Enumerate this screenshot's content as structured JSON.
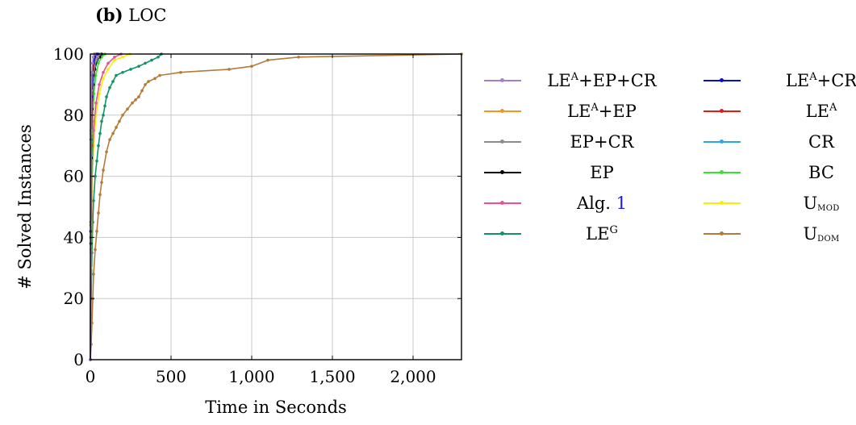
{
  "panel": {
    "tag": "(b)",
    "name": "LOC"
  },
  "chart_data": {
    "type": "line",
    "title": "(b) LOC",
    "xlabel": "Time in Seconds",
    "ylabel": "# Solved Instances",
    "xlim": [
      0,
      2300
    ],
    "ylim": [
      0,
      100
    ],
    "x_ticks": [
      0,
      500,
      1000,
      1500,
      2000
    ],
    "x_tick_labels": [
      "0",
      "500",
      "1,000",
      "1,500",
      "2,000"
    ],
    "y_ticks": [
      0,
      20,
      40,
      60,
      80,
      100
    ],
    "y_tick_labels": [
      "0",
      "20",
      "40",
      "60",
      "80",
      "100"
    ],
    "grid": true,
    "legend_position": "right",
    "series": [
      {
        "key": "le_a_ep_cr",
        "color": "#a77fc0",
        "x": [
          0,
          2,
          4,
          7,
          10,
          14,
          18,
          24,
          30
        ],
        "y": [
          0,
          45,
          75,
          88,
          94,
          97,
          99,
          100,
          100
        ]
      },
      {
        "key": "le_a_cr",
        "color": "#0a0ad6",
        "x": [
          0,
          2,
          4,
          8,
          12,
          18,
          26,
          36,
          45
        ],
        "y": [
          0,
          42,
          72,
          86,
          93,
          97,
          99,
          100,
          100
        ]
      },
      {
        "key": "le_a_ep",
        "color": "#f7941d",
        "x": [
          0,
          2,
          4,
          7,
          11,
          16,
          22,
          30
        ],
        "y": [
          0,
          44,
          74,
          87,
          94,
          97,
          99,
          100
        ]
      },
      {
        "key": "le_a",
        "color": "#e31a1c",
        "x": [
          0,
          3,
          6,
          10,
          15,
          22,
          30,
          40
        ],
        "y": [
          0,
          40,
          70,
          85,
          93,
          97,
          99,
          100
        ]
      },
      {
        "key": "ep_cr",
        "color": "#8c8c8c",
        "x": [
          0,
          3,
          6,
          10,
          16,
          24,
          34,
          48,
          60
        ],
        "y": [
          0,
          40,
          68,
          84,
          92,
          96,
          98,
          99,
          100
        ]
      },
      {
        "key": "cr",
        "color": "#29a9e0",
        "x": [
          0,
          3,
          6,
          11,
          17,
          26,
          38,
          55
        ],
        "y": [
          0,
          40,
          67,
          83,
          91,
          96,
          98,
          100
        ]
      },
      {
        "key": "ep",
        "color": "#000000",
        "x": [
          0,
          3,
          6,
          11,
          18,
          28,
          42,
          58,
          70
        ],
        "y": [
          0,
          38,
          66,
          82,
          90,
          95,
          98,
          99,
          100
        ]
      },
      {
        "key": "bc",
        "color": "#33e233",
        "x": [
          0,
          4,
          8,
          14,
          22,
          34,
          50,
          70,
          90
        ],
        "y": [
          0,
          36,
          62,
          78,
          87,
          93,
          97,
          99,
          100
        ]
      },
      {
        "key": "alg1",
        "color": "#e8509a",
        "x": [
          0,
          5,
          10,
          20,
          35,
          55,
          80,
          110,
          150,
          190
        ],
        "y": [
          0,
          35,
          60,
          75,
          84,
          90,
          94,
          97,
          99,
          100
        ]
      },
      {
        "key": "u_mod",
        "color": "#f5f000",
        "x": [
          0,
          5,
          10,
          20,
          35,
          55,
          80,
          110,
          150,
          200,
          245
        ],
        "y": [
          0,
          30,
          55,
          70,
          80,
          87,
          92,
          95,
          98,
          99,
          100
        ]
      },
      {
        "key": "le_g",
        "color": "#119462",
        "x": [
          0,
          5,
          10,
          15,
          20,
          30,
          40,
          50,
          60,
          70,
          80,
          90,
          100,
          120,
          140,
          160,
          200,
          250,
          300,
          340,
          380,
          420,
          440
        ],
        "y": [
          0,
          20,
          35,
          45,
          52,
          60,
          65,
          70,
          74,
          78,
          80,
          83,
          86,
          89,
          91,
          93,
          94,
          95,
          96,
          97,
          98,
          99,
          100
        ]
      },
      {
        "key": "u_dom",
        "color": "#b57a3a",
        "x": [
          0,
          5,
          10,
          15,
          20,
          30,
          40,
          50,
          60,
          70,
          80,
          100,
          120,
          140,
          160,
          180,
          200,
          230,
          260,
          280,
          300,
          320,
          340,
          360,
          400,
          430,
          560,
          860,
          1000,
          1100,
          1290,
          2300
        ],
        "y": [
          0,
          5,
          12,
          20,
          28,
          36,
          42,
          48,
          54,
          58,
          62,
          68,
          72,
          74,
          76,
          78,
          80,
          82,
          84,
          85,
          86,
          88,
          90,
          91,
          92,
          93,
          94,
          95,
          96,
          98,
          99,
          100
        ]
      }
    ]
  },
  "legend": {
    "left": [
      {
        "key": "le_a_ep_cr",
        "color": "#a77fc0",
        "base": "LE",
        "sup": "A",
        "tail": "+EP+CR"
      },
      {
        "key": "le_a_ep",
        "color": "#f7941d",
        "base": "LE",
        "sup": "A",
        "tail": "+EP"
      },
      {
        "key": "ep_cr",
        "color": "#8c8c8c",
        "base": "EP+CR"
      },
      {
        "key": "ep",
        "color": "#000000",
        "base": "EP"
      },
      {
        "key": "alg1",
        "color": "#e8509a",
        "base": "Alg. ",
        "ref": "1"
      },
      {
        "key": "le_g",
        "color": "#119462",
        "base": "LE",
        "sup": "G"
      }
    ],
    "right": [
      {
        "key": "le_a_cr",
        "color": "#0a0ad6",
        "base": "LE",
        "sup": "A",
        "tail": "+CR"
      },
      {
        "key": "le_a",
        "color": "#e31a1c",
        "base": "LE",
        "sup": "A"
      },
      {
        "key": "cr",
        "color": "#29a9e0",
        "base": "CR"
      },
      {
        "key": "bc",
        "color": "#33e233",
        "base": "BC"
      },
      {
        "key": "u_mod",
        "color": "#f5f000",
        "base": "U",
        "sc": "MOD"
      },
      {
        "key": "u_dom",
        "color": "#b57a3a",
        "base": "U",
        "sc": "DOM"
      }
    ]
  }
}
